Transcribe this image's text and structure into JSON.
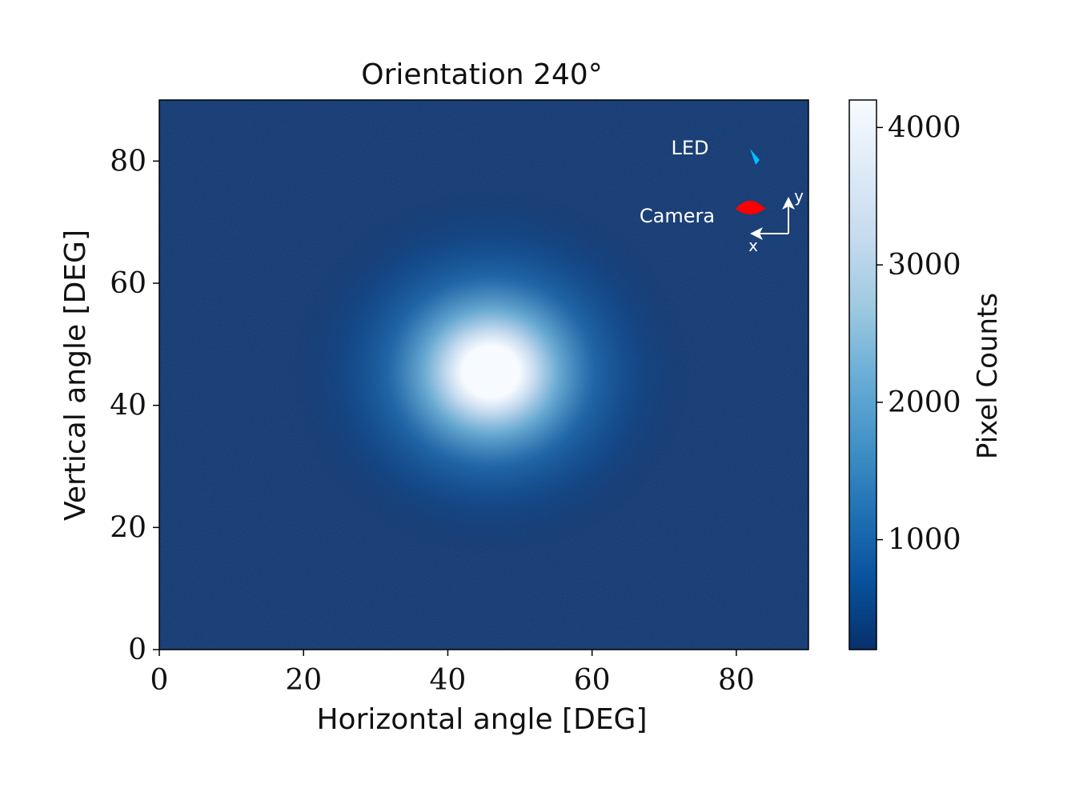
{
  "chart_data": {
    "type": "heatmap",
    "title": "Orientation 240°",
    "xlabel": "Horizontal angle [DEG]",
    "ylabel": "Vertical angle [DEG]",
    "xlim": [
      0,
      90
    ],
    "ylim": [
      0,
      90
    ],
    "x_ticks": [
      "0",
      "20",
      "40",
      "60",
      "80"
    ],
    "y_ticks": [
      "0",
      "20",
      "40",
      "60",
      "80"
    ],
    "x_tick_values": [
      0,
      20,
      40,
      60,
      80
    ],
    "y_tick_values": [
      0,
      20,
      40,
      60,
      80
    ],
    "colorbar": {
      "label": "Pixel Counts",
      "range": [
        200,
        4200
      ],
      "ticks": [
        "1000",
        "2000",
        "3000",
        "4000"
      ],
      "tick_values": [
        1000,
        2000,
        3000,
        4000
      ],
      "colormap": "Blues_r"
    },
    "hotspot": {
      "center_x": 46,
      "center_y": 45.5,
      "peak_counts": 4200,
      "background_counts": 350
    },
    "grid": false
  },
  "inset": {
    "led_label": "LED",
    "camera_label": "Camera",
    "axis_x_label": "x",
    "axis_y_label": "y",
    "led_color": "#00bfff",
    "camera_color": "#ff0000"
  }
}
